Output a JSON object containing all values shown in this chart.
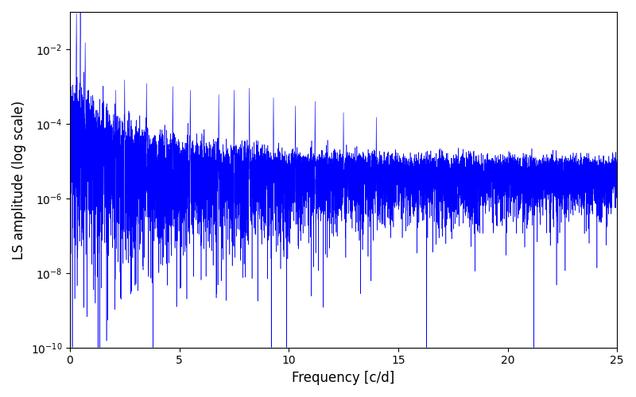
{
  "title": "",
  "xlabel": "Frequency [c/d]",
  "ylabel": "LS amplitude (log scale)",
  "xlim": [
    0,
    25
  ],
  "ylim": [
    1e-10,
    0.1
  ],
  "line_color": "#0000FF",
  "line_width": 0.4,
  "yscale": "log",
  "figsize": [
    8.0,
    5.0
  ],
  "dpi": 100,
  "n_points": 12000,
  "seed": 7,
  "noise_floor": 5e-06,
  "decay_rate": 0.5
}
